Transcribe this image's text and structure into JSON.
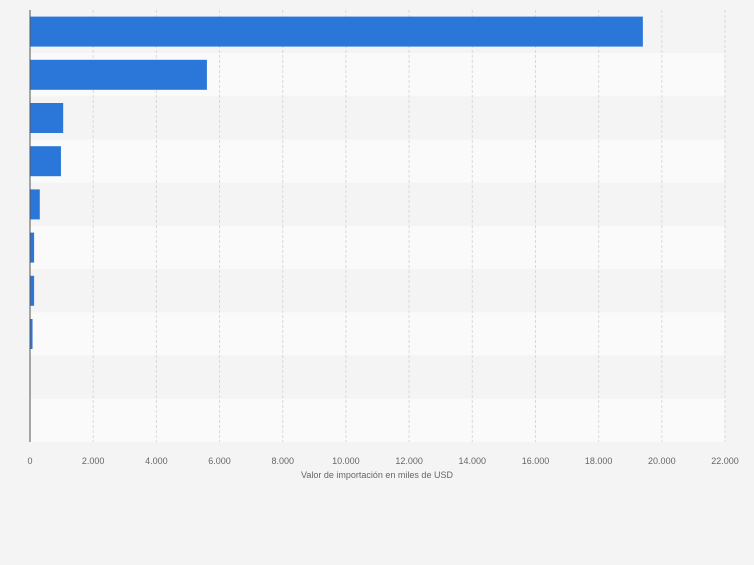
{
  "chart_data": {
    "type": "bar",
    "orientation": "horizontal",
    "categories": [
      "",
      "",
      "",
      "",
      "",
      "",
      "",
      "",
      "",
      ""
    ],
    "values": [
      19400,
      5600,
      1050,
      980,
      310,
      130,
      130,
      80,
      0,
      0
    ],
    "xlabel": "Valor de importación en miles de USD",
    "ylabel": "",
    "xlim": [
      0,
      22000
    ],
    "xticks": [
      "0",
      "2.000",
      "4.000",
      "6.000",
      "8.000",
      "10.000",
      "12.000",
      "14.000",
      "16.000",
      "18.000",
      "20.000",
      "22.000"
    ],
    "xtick_values": [
      0,
      2000,
      4000,
      6000,
      8000,
      10000,
      12000,
      14000,
      16000,
      18000,
      20000,
      22000
    ],
    "grid": true,
    "legend": "none"
  },
  "colors": {
    "bar": "#2a77d9",
    "background": "#f4f4f4",
    "band_light": "#fafafa",
    "band_dark": "#f4f4f4",
    "grid": "#d9d9d9",
    "axis": "#555555",
    "tick_text": "#666666"
  }
}
